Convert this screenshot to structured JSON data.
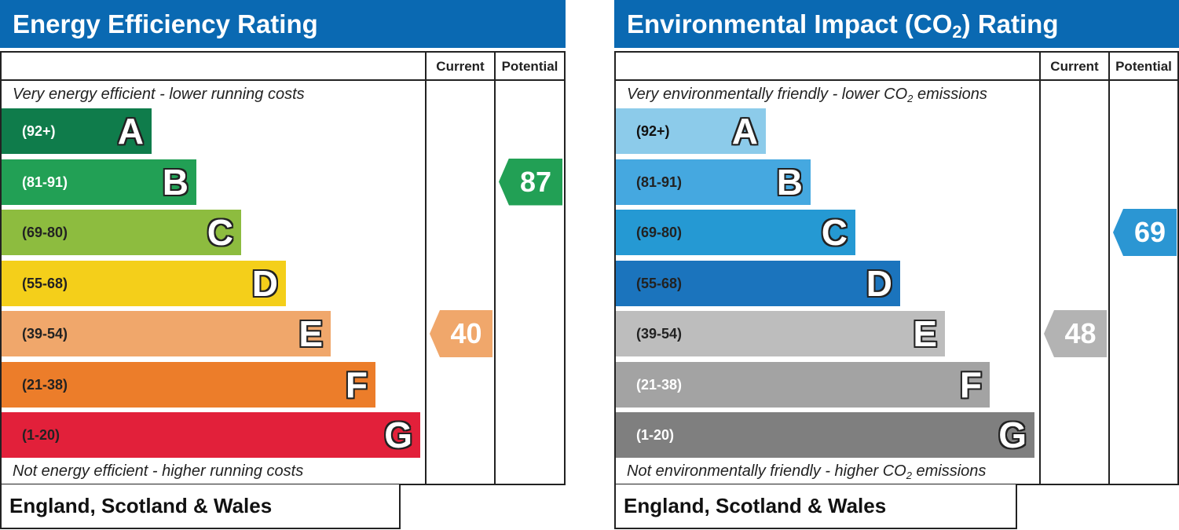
{
  "chart_data": [
    {
      "type": "bar",
      "title": "Energy Efficiency Rating",
      "columns": [
        "Current",
        "Potential"
      ],
      "top_caption": "Very energy efficient - lower running costs",
      "bottom_caption": "Not energy efficient - higher running costs",
      "footer": "England, Scotland & Wales",
      "bands": [
        {
          "letter": "A",
          "range": "(92+)",
          "color": "#0f7c4b",
          "text_color": "#ffffff"
        },
        {
          "letter": "B",
          "range": "(81-91)",
          "color": "#22a055",
          "text_color": "#ffffff"
        },
        {
          "letter": "C",
          "range": "(69-80)",
          "color": "#8dbc3f",
          "text_color": "#222222"
        },
        {
          "letter": "D",
          "range": "(55-68)",
          "color": "#f4cf1a",
          "text_color": "#222222"
        },
        {
          "letter": "E",
          "range": "(39-54)",
          "color": "#f0a76b",
          "text_color": "#222222"
        },
        {
          "letter": "F",
          "range": "(21-38)",
          "color": "#ec7d2a",
          "text_color": "#222222"
        },
        {
          "letter": "G",
          "range": "(1-20)",
          "color": "#e2203a",
          "text_color": "#222222"
        }
      ],
      "current": {
        "value": 40,
        "band": "E",
        "color": "#f0a76b"
      },
      "potential": {
        "value": 87,
        "band": "B",
        "color": "#22a055"
      }
    },
    {
      "type": "bar",
      "title_prefix": "Environmental Impact (CO",
      "title_sub": "2",
      "title_suffix": ") Rating",
      "columns": [
        "Current",
        "Potential"
      ],
      "top_caption_prefix": "Very environmentally friendly - lower CO",
      "top_caption_sub": "2",
      "top_caption_suffix": " emissions",
      "bottom_caption_prefix": "Not environmentally friendly - higher CO",
      "bottom_caption_sub": "2",
      "bottom_caption_suffix": " emissions",
      "footer": "England, Scotland & Wales",
      "bands": [
        {
          "letter": "A",
          "range": "(92+)",
          "color": "#8ccbea",
          "text_color": "#111111"
        },
        {
          "letter": "B",
          "range": "(81-91)",
          "color": "#45a8e0",
          "text_color": "#222222"
        },
        {
          "letter": "C",
          "range": "(69-80)",
          "color": "#2599d3",
          "text_color": "#222222"
        },
        {
          "letter": "D",
          "range": "(55-68)",
          "color": "#1b74bd",
          "text_color": "#222222"
        },
        {
          "letter": "E",
          "range": "(39-54)",
          "color": "#bdbdbd",
          "text_color": "#222222"
        },
        {
          "letter": "F",
          "range": "(21-38)",
          "color": "#a3a3a3",
          "text_color": "#ffffff"
        },
        {
          "letter": "G",
          "range": "(1-20)",
          "color": "#7f7f7f",
          "text_color": "#ffffff"
        }
      ],
      "current": {
        "value": 48,
        "band": "E",
        "color": "#b3b3b3"
      },
      "potential": {
        "value": 69,
        "band": "C",
        "color": "#2b96d3"
      }
    }
  ]
}
